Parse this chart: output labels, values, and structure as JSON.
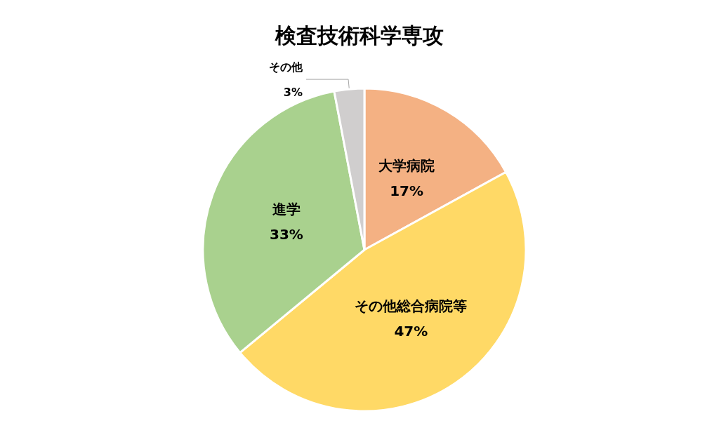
{
  "chart_data": {
    "type": "pie",
    "title": "検査技術科学専攻",
    "categories": [
      "大学病院",
      "その他総合病院等",
      "進学",
      "その他"
    ],
    "values": [
      17,
      47,
      33,
      3
    ],
    "colors": [
      "#f4b183",
      "#ffd966",
      "#a9d18e",
      "#d0cece"
    ],
    "value_labels": [
      "17%",
      "47%",
      "33%",
      "3%"
    ],
    "legend": false
  }
}
